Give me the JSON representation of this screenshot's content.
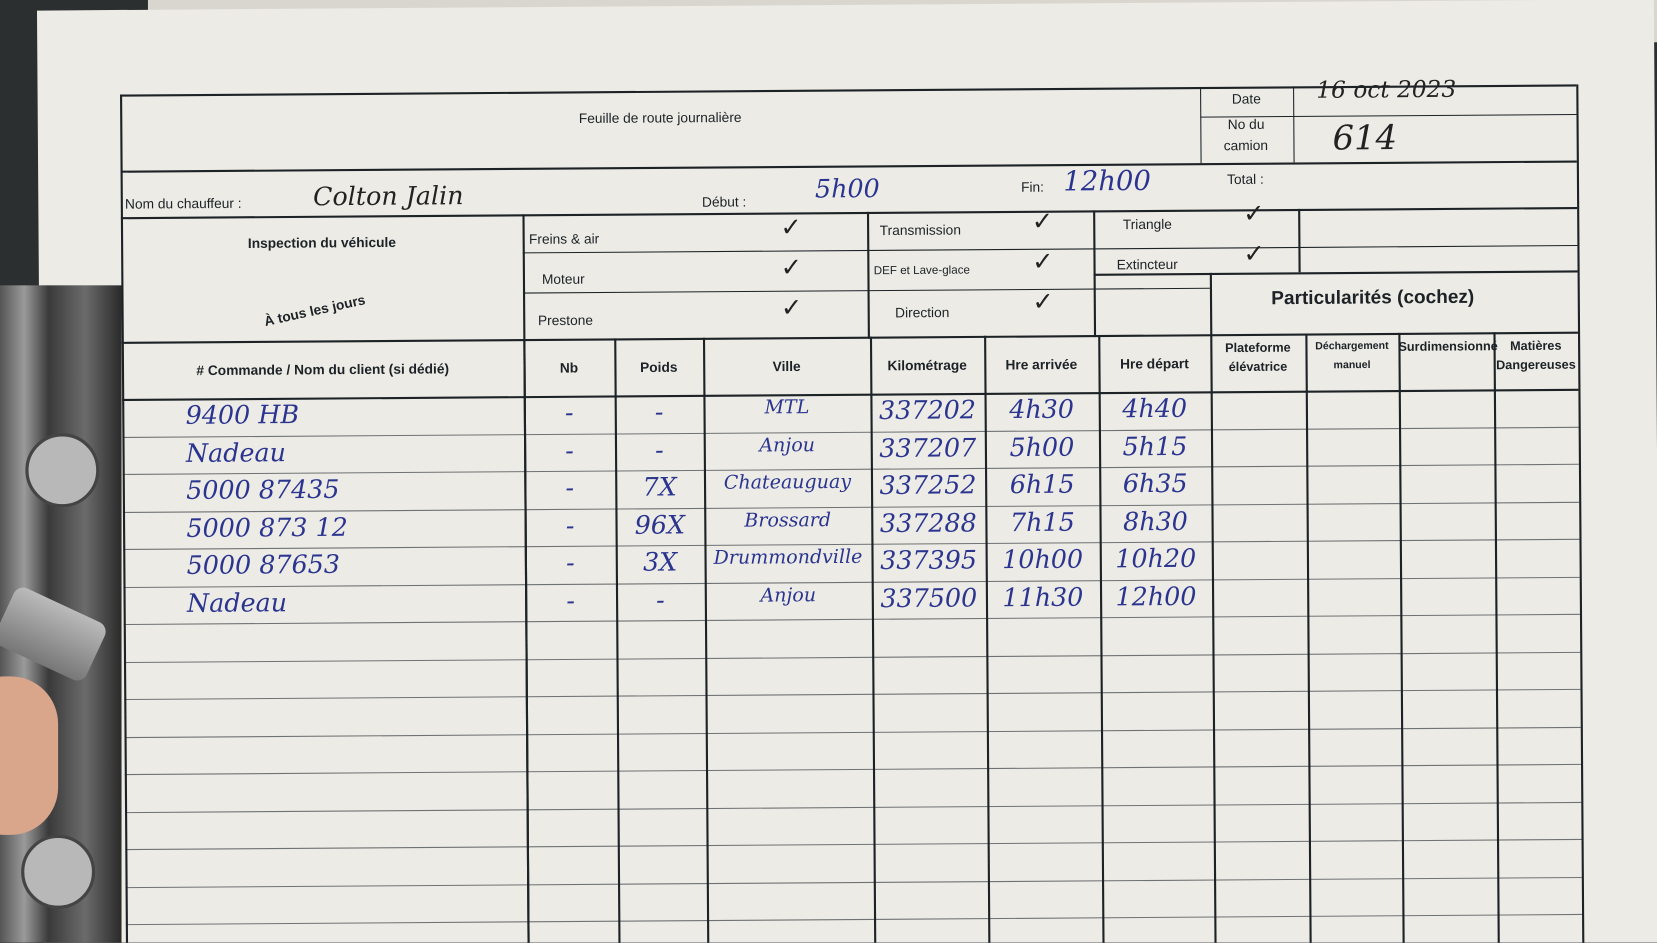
{
  "form": {
    "title": "Feuille de route journalière",
    "date_label": "Date",
    "date_value": "16 oct 2023",
    "truck_label_line1": "No du",
    "truck_label_line2": "camion",
    "truck_value": "614",
    "driver_label": "Nom du chauffeur :",
    "driver_value": "Colton Jalin",
    "start_label": "Début :",
    "start_value": "5h00",
    "end_label": "Fin:",
    "end_value": "12h00",
    "total_label": "Total :",
    "inspection_title": "Inspection du véhicule",
    "inspection_subtitle": "À tous les jours",
    "inspection_items": [
      {
        "label": "Freins & air",
        "checked": true
      },
      {
        "label": "Moteur",
        "checked": true
      },
      {
        "label": "Prestone",
        "checked": true
      },
      {
        "label": "Transmission",
        "checked": true
      },
      {
        "label": "DEF et Lave-glace",
        "checked": true
      },
      {
        "label": "Direction",
        "checked": true
      },
      {
        "label": "Triangle",
        "checked": true
      },
      {
        "label": "Extincteur",
        "checked": true
      }
    ],
    "particularites_title": "Particularités (cochez)",
    "columns": [
      "# Commande / Nom du client (si dédié)",
      "Nb",
      "Poids",
      "Ville",
      "Kilométrage",
      "Hre arrivée",
      "Hre départ",
      "Plateforme élévatrice",
      "Déchargement manuel",
      "Surdimensionné",
      "Matières Dangereuses"
    ],
    "rows": [
      [
        "9400 HB",
        "-",
        "-",
        "MTL",
        "337202",
        "4h30",
        "4h40"
      ],
      [
        "Nadeau",
        "-",
        "-",
        "Anjou",
        "337207",
        "5h00",
        "5h15"
      ],
      [
        "5000 87435",
        "-",
        "7X",
        "Chateauguay",
        "337252",
        "6h15",
        "6h35"
      ],
      [
        "5000 873 12",
        "-",
        "96X",
        "Brossard",
        "337288",
        "7h15",
        "8h30"
      ],
      [
        "5000 87653",
        "-",
        "3X",
        "Drummondville",
        "337395",
        "10h00",
        "10h20"
      ],
      [
        "Nadeau",
        "-",
        "-",
        "Anjou",
        "337500",
        "11h30",
        "12h00"
      ]
    ],
    "check_mark": "✓",
    "ink_color": "#2b3590"
  }
}
